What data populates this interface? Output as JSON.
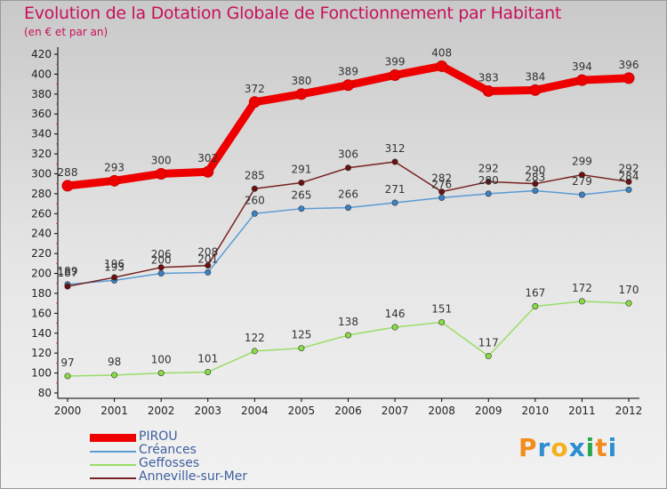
{
  "chart_data": {
    "type": "line",
    "title": "Evolution de la Dotation Globale de Fonctionnement par Habitant",
    "subtitle": "(en € et par an)",
    "xlabel": "",
    "ylabel": "",
    "ylim": [
      80,
      420
    ],
    "y_ticks": [
      80,
      100,
      120,
      140,
      160,
      180,
      200,
      220,
      240,
      260,
      280,
      300,
      320,
      340,
      360,
      380,
      400,
      420
    ],
    "categories": [
      "2000",
      "2001",
      "2002",
      "2003",
      "2004",
      "2005",
      "2006",
      "2007",
      "2008",
      "2009",
      "2010",
      "2011",
      "2012"
    ],
    "grid": false,
    "legend_position": "bottom-left",
    "series": [
      {
        "name": "PIROU",
        "color": "#ee0000",
        "values": [
          288,
          293,
          300,
          302,
          372,
          380,
          389,
          399,
          408,
          383,
          384,
          394,
          396
        ]
      },
      {
        "name": "Créances",
        "color": "#5b9bd5",
        "values": [
          189,
          193,
          200,
          201,
          260,
          265,
          266,
          271,
          276,
          280,
          283,
          279,
          284
        ]
      },
      {
        "name": "Geffosses",
        "color": "#99dd66",
        "values": [
          97,
          98,
          100,
          101,
          122,
          125,
          138,
          146,
          151,
          117,
          167,
          172,
          170
        ]
      },
      {
        "name": "Anneville-sur-Mer",
        "color": "#772222",
        "values": [
          187,
          196,
          206,
          208,
          285,
          291,
          306,
          312,
          282,
          292,
          290,
          299,
          292
        ]
      }
    ]
  },
  "brand": {
    "letters": [
      "P",
      "r",
      "o",
      "x",
      "i",
      "t",
      "i"
    ],
    "colors": [
      "#f28c1e",
      "#2d8fd0",
      "#f2b21e",
      "#2d8fd0",
      "#2aa84a",
      "#f28c1e",
      "#2d8fd0"
    ]
  }
}
